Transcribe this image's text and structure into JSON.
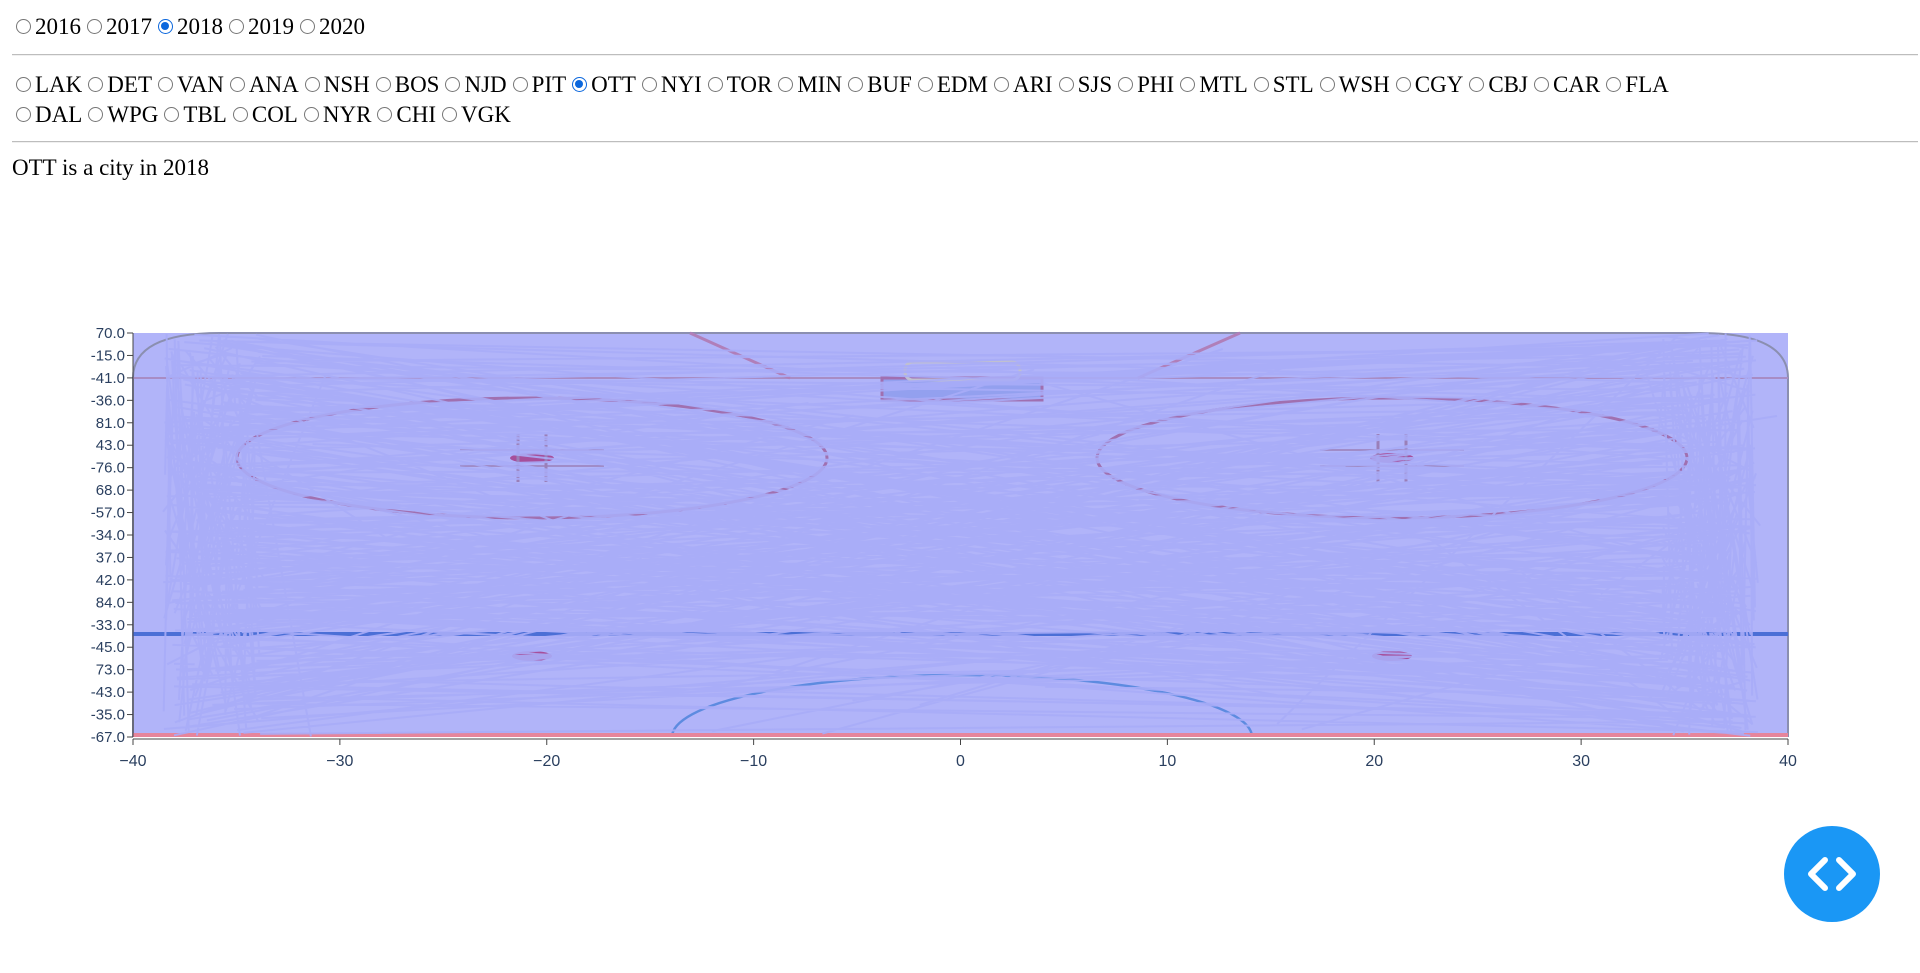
{
  "years": {
    "options": [
      "2016",
      "2017",
      "2018",
      "2019",
      "2020"
    ],
    "selected": "2018"
  },
  "teams": {
    "row1": [
      "LAK",
      "DET",
      "VAN",
      "ANA",
      "NSH",
      "BOS",
      "NJD",
      "PIT",
      "OTT",
      "NYI",
      "TOR",
      "MIN",
      "BUF",
      "EDM",
      "ARI",
      "SJS",
      "PHI",
      "MTL",
      "STL",
      "WSH",
      "CGY",
      "CBJ",
      "CAR",
      "FLA"
    ],
    "row2": [
      "DAL",
      "WPG",
      "TBL",
      "COL",
      "NYR",
      "CHI",
      "VGK"
    ],
    "selected": "OTT"
  },
  "caption": "OTT is a city in 2018",
  "chart_data": {
    "type": "line",
    "x_ticks": [
      -40,
      -30,
      -20,
      -10,
      0,
      10,
      20,
      30,
      40
    ],
    "x_range": [
      -40,
      40
    ],
    "y_category_ticks": [
      "70.0",
      "-15.0",
      "-41.0",
      "-36.0",
      "81.0",
      "43.0",
      "-76.0",
      "68.0",
      "-57.0",
      "-34.0",
      "37.0",
      "42.0",
      "84.0",
      "-33.0",
      "-45.0",
      "73.0",
      "-43.0",
      "-35.0",
      "-67.0"
    ],
    "series_color": "#a9acf7",
    "background": "hockey-rink",
    "grid": false
  },
  "icons": {
    "fab": "code-icon"
  },
  "colors": {
    "radio_selected": "#0b67dd",
    "fab_bg": "#1a97f5",
    "axis_text": "#2a3f5f"
  }
}
